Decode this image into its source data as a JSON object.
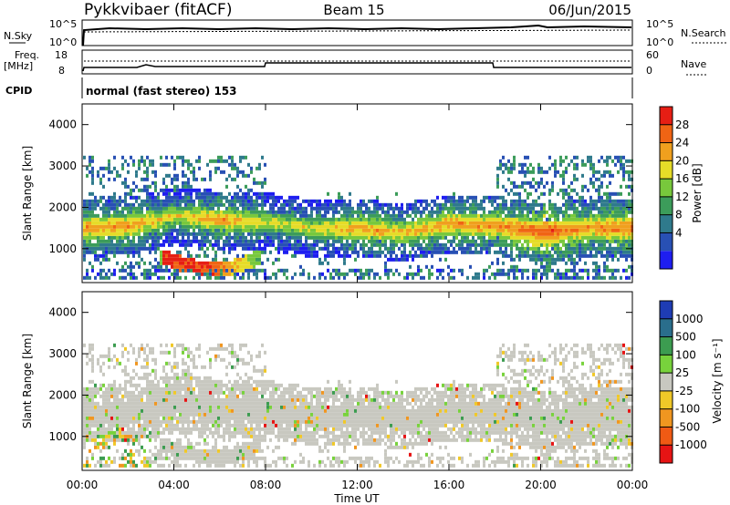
{
  "header": {
    "station": "Pykkvibaer (fitACF)",
    "beam": "Beam 15",
    "date": "06/Jun/2015"
  },
  "status_panels": {
    "nsky_label": "N.Sky",
    "nsearch_label": "N.Search",
    "count_ticks": [
      "10^5",
      "10^0"
    ],
    "freq_label": "Freq.",
    "freq_unit": "[MHz]",
    "freq_ticks": [
      "18",
      "8"
    ],
    "nave_label": "Nave",
    "nave_ticks": [
      "60",
      "0"
    ],
    "cpid_label": "CPID",
    "cpid_value": "normal (fast stereo) 153"
  },
  "axes": {
    "ylabel": "Slant Range [km]",
    "xlabel": "Time UT",
    "y_ticks": [
      "4000",
      "3000",
      "2000",
      "1000"
    ],
    "x_ticks": [
      "00:00",
      "04:00",
      "08:00",
      "12:00",
      "16:00",
      "20:00",
      "00:00"
    ]
  },
  "colorbars": {
    "power": {
      "label": "Power [dB]",
      "ticks": [
        "28",
        "24",
        "20",
        "16",
        "12",
        "8",
        "4"
      ],
      "colors": [
        "#1e1ef0",
        "#2850b4",
        "#2f7a8c",
        "#3c9c5a",
        "#78c83c",
        "#e6dc28",
        "#f0a01e",
        "#f06414",
        "#e61e14"
      ]
    },
    "velocity": {
      "label": "Velocity [m s⁻¹]",
      "ticks": [
        "1000",
        "500",
        "100",
        "25",
        "-25",
        "-100",
        "-500",
        "-1000"
      ],
      "colors": [
        "#1e3cb4",
        "#2a6e8c",
        "#3c9c50",
        "#78d23c",
        "#c8c8c0",
        "#f0c828",
        "#f09620",
        "#f05a14",
        "#e61414"
      ]
    }
  },
  "chart_data": [
    {
      "type": "heatmap",
      "title": "Power",
      "xlabel": "Time UT",
      "ylabel": "Slant Range [km]",
      "x_range": [
        "00:00",
        "24:00"
      ],
      "ylim": [
        180,
        4500
      ],
      "colorbar_label": "Power [dB]",
      "colorbar_ticks": [
        4,
        8,
        12,
        16,
        20,
        24,
        28
      ],
      "scatter_band": {
        "time_h": [
          0,
          2,
          4,
          6,
          8,
          10,
          12,
          14,
          16,
          18,
          20,
          22,
          24
        ],
        "peak_range_km": [
          1450,
          1500,
          1750,
          1650,
          1600,
          1450,
          1450,
          1350,
          1550,
          1500,
          1350,
          1450,
          1450
        ],
        "peak_power_db": [
          24,
          24,
          20,
          24,
          20,
          20,
          24,
          22,
          24,
          24,
          28,
          24,
          26
        ]
      },
      "near_range_echo": {
        "time_h": [
          3.5,
          4.5,
          5.5,
          6.5,
          7.5
        ],
        "range_km": [
          750,
          550,
          450,
          500,
          700
        ],
        "power_db": [
          28,
          28,
          28,
          22,
          16
        ]
      }
    },
    {
      "type": "heatmap",
      "title": "Velocity",
      "xlabel": "Time UT",
      "ylabel": "Slant Range [km]",
      "x_range": [
        "00:00",
        "24:00"
      ],
      "ylim": [
        180,
        4500
      ],
      "colorbar_label": "Velocity [m s⁻¹]",
      "colorbar_ticks": [
        1000,
        500,
        100,
        25,
        -25,
        -100,
        -500,
        -1000
      ],
      "dominant_velocity_range": [
        -25,
        25
      ]
    }
  ]
}
